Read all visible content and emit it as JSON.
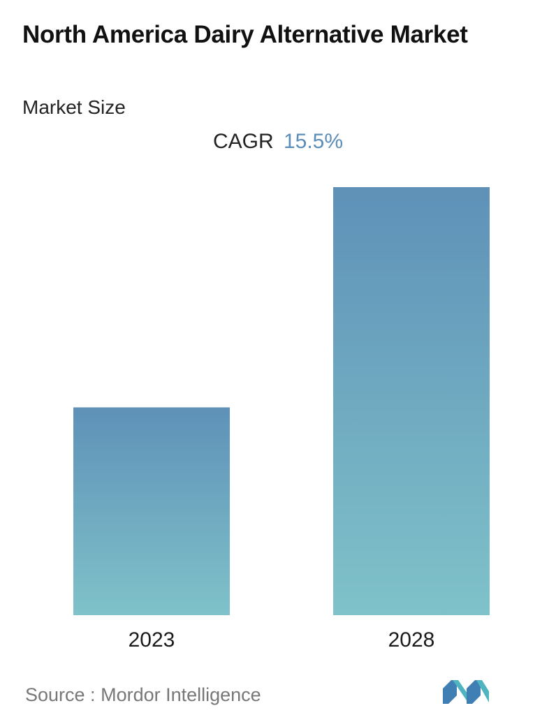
{
  "header": {
    "title": "North America Dairy Alternative Market",
    "subtitle": "Market Size"
  },
  "cagr": {
    "label": "CAGR",
    "value": "15.5%",
    "value_color": "#5b8db8"
  },
  "chart_data": {
    "type": "bar",
    "categories": [
      "2023",
      "2028"
    ],
    "values": [
      1.0,
      2.06
    ],
    "value_unit": "relative (2023 = 1)",
    "title": "",
    "xlabel": "",
    "ylabel": "",
    "grid": false,
    "gradient_top": "#5f91b8",
    "gradient_bottom": "#7fc2c9"
  },
  "footer": {
    "source_label": "Source :",
    "source_name": "Mordor Intelligence",
    "logo_icon": "mordor-intelligence-logo-icon"
  }
}
